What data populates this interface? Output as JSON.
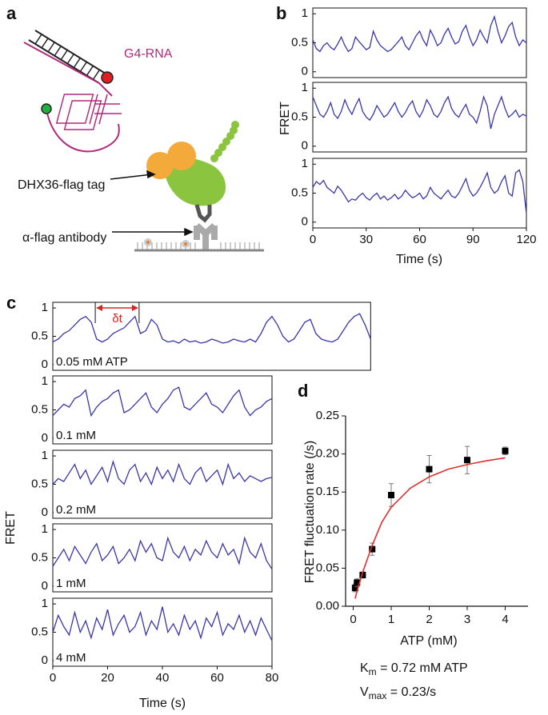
{
  "diagram": {
    "panel": "a",
    "labels": [
      "G4-RNA",
      "DHX36-flag tag",
      "α-flag antibody"
    ]
  },
  "chart_data": [
    {
      "type": "line_panels",
      "panel": "b",
      "ylabel": "FRET",
      "xlabel": "Time (s)",
      "color": "#3b36a8",
      "xlim": [
        0,
        120
      ],
      "xticks": [
        0,
        30,
        60,
        90,
        120
      ],
      "ylim": [
        -0.1,
        1.1
      ],
      "yticks": [
        0,
        0.5,
        1
      ],
      "x": [
        0,
        2,
        4,
        6,
        8,
        10,
        12,
        14,
        16,
        18,
        20,
        22,
        24,
        26,
        28,
        30,
        32,
        34,
        36,
        38,
        40,
        42,
        44,
        46,
        48,
        50,
        52,
        54,
        56,
        58,
        60,
        62,
        64,
        66,
        68,
        70,
        72,
        74,
        76,
        78,
        80,
        82,
        84,
        86,
        88,
        90,
        92,
        94,
        96,
        98,
        100,
        102,
        104,
        106,
        108,
        110,
        112,
        114,
        116,
        118,
        120
      ],
      "series": [
        {
          "values": [
            0.55,
            0.4,
            0.35,
            0.45,
            0.5,
            0.42,
            0.38,
            0.48,
            0.6,
            0.45,
            0.35,
            0.4,
            0.6,
            0.52,
            0.45,
            0.38,
            0.42,
            0.7,
            0.55,
            0.45,
            0.4,
            0.35,
            0.38,
            0.45,
            0.52,
            0.6,
            0.45,
            0.38,
            0.5,
            0.62,
            0.7,
            0.55,
            0.45,
            0.72,
            0.6,
            0.45,
            0.5,
            0.65,
            0.75,
            0.6,
            0.48,
            0.52,
            0.7,
            0.8,
            0.6,
            0.45,
            0.55,
            0.72,
            0.6,
            0.5,
            0.8,
            0.95,
            0.7,
            0.5,
            0.62,
            0.78,
            0.85,
            0.6,
            0.45,
            0.55,
            0.5
          ]
        },
        {
          "values": [
            0.85,
            0.7,
            0.55,
            0.5,
            0.6,
            0.75,
            0.55,
            0.48,
            0.6,
            0.8,
            0.65,
            0.55,
            0.7,
            0.82,
            0.6,
            0.5,
            0.45,
            0.55,
            0.7,
            0.6,
            0.5,
            0.55,
            0.65,
            0.75,
            0.6,
            0.5,
            0.58,
            0.7,
            0.78,
            0.6,
            0.5,
            0.62,
            0.8,
            0.7,
            0.55,
            0.5,
            0.6,
            0.75,
            0.85,
            0.65,
            0.55,
            0.5,
            0.62,
            0.72,
            0.55,
            0.5,
            0.4,
            0.6,
            0.85,
            0.7,
            0.3,
            0.55,
            0.7,
            0.85,
            0.65,
            0.5,
            0.55,
            0.62,
            0.5,
            0.55,
            0.52
          ]
        },
        {
          "values": [
            0.6,
            0.7,
            0.65,
            0.72,
            0.6,
            0.55,
            0.5,
            0.62,
            0.55,
            0.45,
            0.35,
            0.4,
            0.38,
            0.45,
            0.5,
            0.42,
            0.38,
            0.45,
            0.5,
            0.4,
            0.45,
            0.38,
            0.42,
            0.48,
            0.4,
            0.45,
            0.55,
            0.48,
            0.42,
            0.45,
            0.5,
            0.4,
            0.45,
            0.6,
            0.5,
            0.45,
            0.4,
            0.48,
            0.55,
            0.45,
            0.42,
            0.5,
            0.62,
            0.75,
            0.55,
            0.45,
            0.5,
            0.6,
            0.72,
            0.85,
            0.6,
            0.5,
            0.55,
            0.7,
            0.8,
            0.5,
            0.45,
            0.85,
            0.9,
            0.7,
            0.15
          ]
        }
      ]
    },
    {
      "type": "line_panels",
      "panel": "c",
      "ylabel": "FRET",
      "xlabel": "Time (s)",
      "color": "#3b36a8",
      "xlim": [
        0,
        80
      ],
      "xticks": [
        0,
        20,
        40,
        60,
        80
      ],
      "ylim": [
        -0.1,
        1.1
      ],
      "yticks": [
        0,
        0.5,
        1
      ],
      "annotation": {
        "text": "δt",
        "x": [
          15.5,
          31.5
        ],
        "color": "#e02020"
      },
      "series": [
        {
          "name": "0.05 mM ATP",
          "xlim": [
            0,
            116
          ],
          "x": [
            0,
            2,
            4,
            6,
            8,
            10,
            12,
            14,
            16,
            18,
            20,
            22,
            24,
            26,
            28,
            30,
            32,
            34,
            36,
            38,
            40,
            42,
            44,
            46,
            48,
            50,
            52,
            54,
            56,
            58,
            60,
            62,
            64,
            66,
            68,
            70,
            72,
            74,
            76,
            78,
            80,
            82,
            84,
            86,
            88,
            90,
            92,
            94,
            96,
            98,
            100,
            102,
            104,
            106,
            108,
            110,
            112,
            114,
            116
          ],
          "values": [
            0.4,
            0.45,
            0.55,
            0.6,
            0.7,
            0.8,
            0.85,
            0.75,
            0.45,
            0.4,
            0.45,
            0.55,
            0.6,
            0.65,
            0.75,
            0.85,
            0.55,
            0.6,
            0.8,
            0.7,
            0.45,
            0.4,
            0.42,
            0.38,
            0.45,
            0.4,
            0.42,
            0.38,
            0.4,
            0.45,
            0.42,
            0.38,
            0.4,
            0.45,
            0.42,
            0.4,
            0.45,
            0.4,
            0.55,
            0.75,
            0.85,
            0.7,
            0.5,
            0.4,
            0.45,
            0.6,
            0.75,
            0.8,
            0.55,
            0.45,
            0.42,
            0.4,
            0.45,
            0.6,
            0.75,
            0.85,
            0.9,
            0.7,
            0.45
          ]
        },
        {
          "name": "0.1 mM",
          "x": [
            0,
            2,
            4,
            6,
            8,
            10,
            12,
            14,
            16,
            18,
            20,
            22,
            24,
            26,
            28,
            30,
            32,
            34,
            36,
            38,
            40,
            42,
            44,
            46,
            48,
            50,
            52,
            54,
            56,
            58,
            60,
            62,
            64,
            66,
            68,
            70,
            72,
            74,
            76,
            78,
            80
          ],
          "values": [
            0.4,
            0.5,
            0.6,
            0.55,
            0.7,
            0.75,
            0.85,
            0.4,
            0.55,
            0.65,
            0.7,
            0.8,
            0.85,
            0.45,
            0.5,
            0.6,
            0.7,
            0.8,
            0.55,
            0.45,
            0.6,
            0.7,
            0.85,
            0.9,
            0.55,
            0.5,
            0.6,
            0.7,
            0.8,
            0.6,
            0.55,
            0.45,
            0.6,
            0.75,
            0.85,
            0.55,
            0.4,
            0.5,
            0.55,
            0.65,
            0.7
          ]
        },
        {
          "name": "0.2 mM",
          "x": [
            0,
            2,
            4,
            6,
            8,
            10,
            12,
            14,
            16,
            18,
            20,
            22,
            24,
            26,
            28,
            30,
            32,
            34,
            36,
            38,
            40,
            42,
            44,
            46,
            48,
            50,
            52,
            54,
            56,
            58,
            60,
            62,
            64,
            66,
            68,
            70,
            72,
            74,
            76,
            78,
            80
          ],
          "values": [
            0.5,
            0.6,
            0.55,
            0.7,
            0.85,
            0.6,
            0.75,
            0.5,
            0.65,
            0.8,
            0.55,
            0.9,
            0.6,
            0.5,
            0.75,
            0.85,
            0.55,
            0.7,
            0.5,
            0.8,
            0.6,
            0.75,
            0.55,
            0.85,
            0.6,
            0.5,
            0.7,
            0.8,
            0.55,
            0.65,
            0.75,
            0.5,
            0.85,
            0.6,
            0.7,
            0.55,
            0.65,
            0.6,
            0.55,
            0.6,
            0.62
          ]
        },
        {
          "name": "1 mM",
          "x": [
            0,
            2,
            4,
            6,
            8,
            10,
            12,
            14,
            16,
            18,
            20,
            22,
            24,
            26,
            28,
            30,
            32,
            34,
            36,
            38,
            40,
            42,
            44,
            46,
            48,
            50,
            52,
            54,
            56,
            58,
            60,
            62,
            64,
            66,
            68,
            70,
            72,
            74,
            76,
            78,
            80
          ],
          "values": [
            0.35,
            0.5,
            0.65,
            0.45,
            0.7,
            0.55,
            0.4,
            0.6,
            0.75,
            0.45,
            0.55,
            0.7,
            0.4,
            0.5,
            0.65,
            0.45,
            0.8,
            0.6,
            0.75,
            0.5,
            0.45,
            0.85,
            0.6,
            0.5,
            0.7,
            0.45,
            0.65,
            0.55,
            0.8,
            0.6,
            0.5,
            0.75,
            0.55,
            0.65,
            0.4,
            0.85,
            0.6,
            0.5,
            0.75,
            0.45,
            0.3
          ]
        },
        {
          "name": "4 mM",
          "x": [
            0,
            2,
            4,
            6,
            8,
            10,
            12,
            14,
            16,
            18,
            20,
            22,
            24,
            26,
            28,
            30,
            32,
            34,
            36,
            38,
            40,
            42,
            44,
            46,
            48,
            50,
            52,
            54,
            56,
            58,
            60,
            62,
            64,
            66,
            68,
            70,
            72,
            74,
            76,
            78,
            80
          ],
          "values": [
            0.5,
            0.8,
            0.6,
            0.45,
            0.85,
            0.5,
            0.7,
            0.4,
            0.75,
            0.55,
            0.9,
            0.45,
            0.65,
            0.8,
            0.5,
            0.6,
            0.85,
            0.45,
            0.7,
            0.55,
            0.95,
            0.5,
            0.65,
            0.45,
            0.8,
            0.55,
            0.7,
            0.4,
            0.75,
            0.6,
            0.85,
            0.45,
            0.65,
            0.55,
            0.8,
            0.5,
            0.7,
            0.45,
            0.75,
            0.55,
            0.35
          ]
        }
      ]
    },
    {
      "type": "scatter",
      "panel": "d",
      "xlabel": "ATP (mM)",
      "ylabel": "FRET fluctuation rate (/s)",
      "xlim": [
        -0.2,
        4.6
      ],
      "xticks": [
        0,
        1,
        2,
        3,
        4
      ],
      "ylim": [
        0,
        0.25
      ],
      "yticks": [
        {
          "value": 0,
          "label": "0.00"
        },
        {
          "value": 0.05,
          "label": "0.05"
        },
        {
          "value": 0.1,
          "label": "0.10"
        },
        {
          "value": 0.15,
          "label": "0.15"
        },
        {
          "value": 0.2,
          "label": "0.20"
        },
        {
          "value": 0.25,
          "label": "0.25"
        }
      ],
      "annotations": [
        [
          "K",
          "m",
          " = 0.72 mM ATP"
        ],
        [
          "V",
          "max",
          " = 0.23/s"
        ]
      ],
      "series": [
        {
          "type": "scatter",
          "color": "#000000",
          "x": [
            0.05,
            0.1,
            0.25,
            0.5,
            1,
            2,
            3,
            4
          ],
          "values": [
            0.024,
            0.031,
            0.041,
            0.075,
            0.146,
            0.18,
            0.192,
            0.204
          ],
          "errors": [
            0.005,
            0.005,
            0.004,
            0.008,
            0.015,
            0.018,
            0.018,
            0.005
          ]
        },
        {
          "type": "line",
          "color": "#e03030",
          "x": [
            0.05,
            0.1,
            0.25,
            0.5,
            0.75,
            1,
            1.5,
            2,
            2.5,
            3,
            3.5,
            4
          ],
          "values": [
            0.01,
            0.02,
            0.045,
            0.08,
            0.11,
            0.13,
            0.155,
            0.17,
            0.18,
            0.186,
            0.191,
            0.195
          ]
        }
      ]
    }
  ]
}
